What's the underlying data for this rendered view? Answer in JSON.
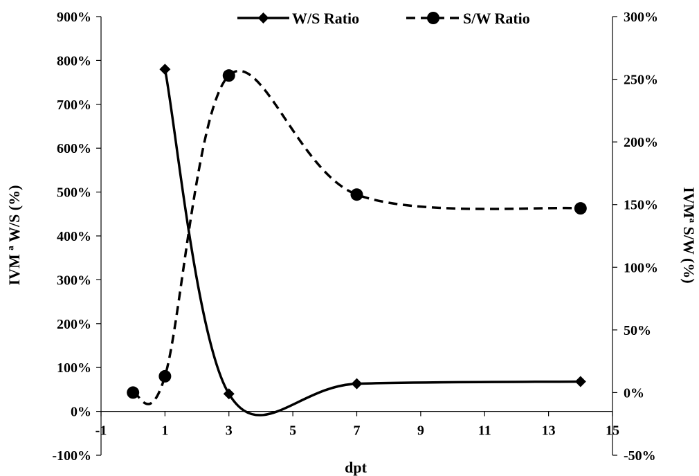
{
  "chart_data": {
    "type": "line",
    "xlabel": "dpt",
    "ylabel_left": "IVM ª  W/S (%)",
    "ylabel_right": "IVMª S/W (%)",
    "xlim": [
      -1,
      15
    ],
    "ylim_left": [
      -1.0,
      9.0
    ],
    "ylim_right": [
      -0.5,
      3.0
    ],
    "x_ticks": [
      -1,
      1,
      3,
      5,
      7,
      9,
      11,
      13,
      15
    ],
    "y_left_ticks": [
      -1,
      0,
      1,
      2,
      3,
      4,
      5,
      6,
      7,
      8,
      9
    ],
    "y_right_ticks": [
      -0.5,
      0,
      0.5,
      1.0,
      1.5,
      2.0,
      2.5,
      3.0
    ],
    "x_tick_labels": [
      "-1",
      "1",
      "3",
      "5",
      "7",
      "9",
      "11",
      "13",
      "15"
    ],
    "y_left_tick_labels": [
      "-100%",
      "0%",
      "100%",
      "200%",
      "300%",
      "400%",
      "500%",
      "600%",
      "700%",
      "800%",
      "900%"
    ],
    "y_right_tick_labels": [
      "-50%",
      "0%",
      "50%",
      "100%",
      "150%",
      "200%",
      "250%",
      "300%"
    ],
    "grid": false,
    "legend_position": "top",
    "series": [
      {
        "name": "W/S Ratio",
        "axis": "left",
        "line_style": "solid",
        "marker": "diamond",
        "color": "#000000",
        "x": [
          1,
          3,
          7,
          14
        ],
        "y": [
          7.8,
          0.4,
          0.63,
          0.68
        ]
      },
      {
        "name": "S/W Ratio",
        "axis": "right",
        "line_style": "dashed",
        "marker": "circle",
        "color": "#000000",
        "x": [
          0,
          1,
          3,
          7,
          14
        ],
        "y": [
          0.0,
          0.13,
          2.53,
          1.58,
          1.47
        ]
      }
    ]
  }
}
